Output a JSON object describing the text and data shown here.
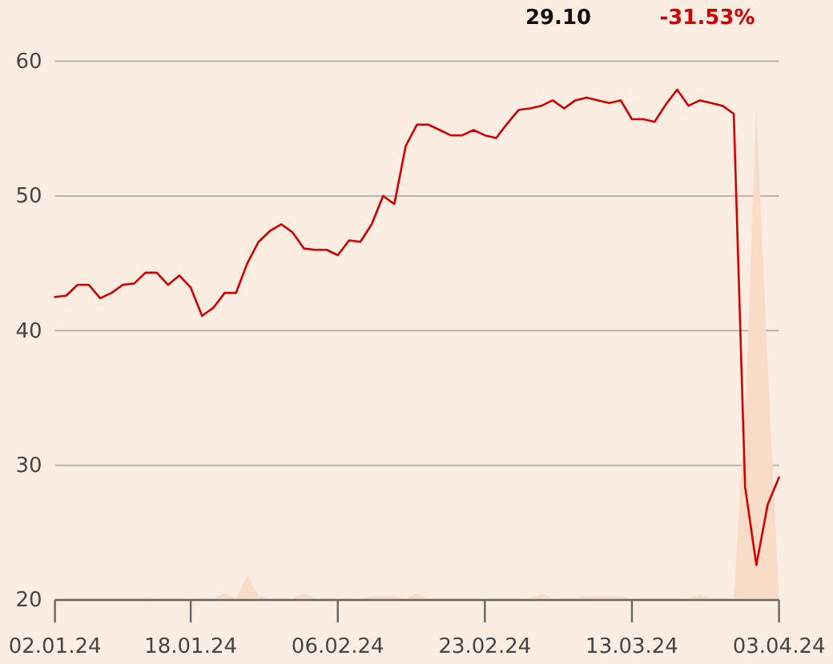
{
  "chart_data": {
    "type": "line",
    "annotations": [
      "29.10",
      "-31.53%"
    ],
    "categories": [
      "02.01.24",
      null,
      null,
      null,
      null,
      null,
      null,
      null,
      null,
      null,
      null,
      null,
      "18.01.24",
      null,
      null,
      null,
      null,
      null,
      null,
      null,
      null,
      null,
      null,
      null,
      null,
      "06.02.24",
      null,
      null,
      null,
      null,
      null,
      null,
      null,
      null,
      null,
      null,
      null,
      null,
      "23.02.24",
      null,
      null,
      null,
      null,
      null,
      null,
      null,
      null,
      null,
      null,
      null,
      null,
      "13.03.24",
      null,
      null,
      null,
      null,
      null,
      null,
      null,
      null,
      null,
      null,
      null,
      null,
      "03.04.24"
    ],
    "ylim": [
      20,
      60
    ],
    "yticks": [
      20,
      30,
      40,
      50,
      60
    ],
    "grid": "y",
    "series": [
      {
        "type": "area",
        "color": "#f8dcc7",
        "values": [
          20.1,
          20.1,
          20.1,
          20.1,
          20.1,
          20.1,
          20.1,
          20.1,
          20.2,
          20.1,
          20.1,
          20.1,
          20.1,
          20.1,
          20.1,
          20.5,
          20.1,
          21.8,
          20.3,
          20.1,
          20.1,
          20.1,
          20.5,
          20.1,
          20.1,
          20.1,
          20.1,
          20.1,
          20.3,
          20.3,
          20.3,
          20.1,
          20.5,
          20.1,
          20.1,
          20.1,
          20.1,
          20.1,
          20.1,
          20.1,
          20.1,
          20.1,
          20.1,
          20.5,
          20.1,
          20.1,
          20.1,
          20.3,
          20.3,
          20.3,
          20.3,
          20.1,
          20.1,
          20.1,
          20.1,
          20.1,
          20.1,
          20.4,
          20.1,
          20.1,
          20.1,
          33.7,
          56.6,
          37.3,
          20.1
        ]
      },
      {
        "color": "#d40000",
        "values": [
          42.5,
          42.6,
          43.4,
          43.4,
          42.4,
          42.8,
          43.4,
          43.5,
          44.3,
          44.3,
          43.4,
          44.1,
          43.2,
          41.1,
          41.7,
          42.8,
          42.8,
          45.0,
          46.6,
          47.4,
          47.9,
          47.3,
          46.1,
          46.0,
          46.0,
          45.6,
          46.7,
          46.6,
          47.9,
          50.0,
          49.4,
          53.7,
          55.3,
          55.3,
          54.9,
          54.5,
          54.5,
          54.9,
          54.5,
          54.3,
          55.4,
          56.4,
          56.5,
          56.7,
          57.1,
          56.5,
          57.1,
          57.3,
          57.1,
          56.9,
          57.1,
          55.7,
          55.7,
          55.5,
          56.8,
          57.9,
          56.7,
          57.1,
          56.9,
          56.7,
          56.1,
          28.4,
          22.6,
          27.1,
          29.1
        ]
      }
    ]
  }
}
